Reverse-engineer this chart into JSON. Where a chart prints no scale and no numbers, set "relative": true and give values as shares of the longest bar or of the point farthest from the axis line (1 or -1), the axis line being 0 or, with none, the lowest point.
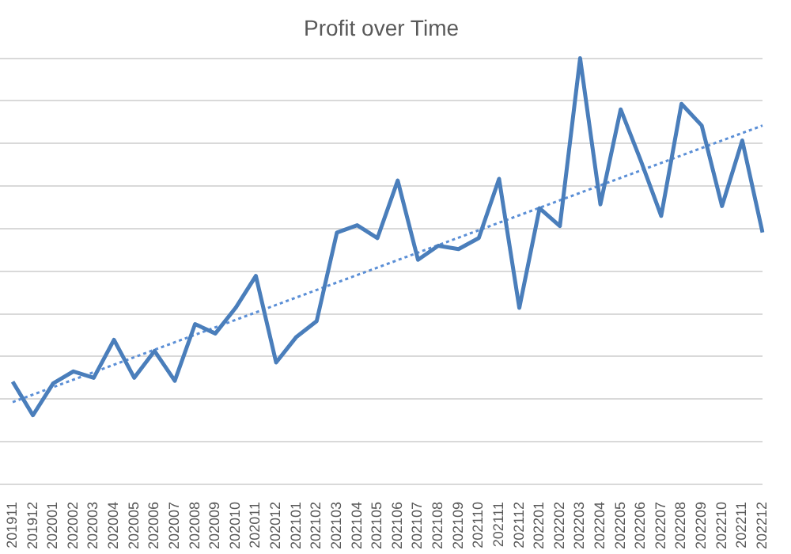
{
  "chart_data": {
    "type": "line",
    "title": "Profit over Time",
    "relative": true,
    "grid": "y",
    "marker": "none",
    "legend": false,
    "categories": [
      "201911",
      "201912",
      "202001",
      "202002",
      "202003",
      "202004",
      "202005",
      "202006",
      "202007",
      "202008",
      "202009",
      "202010",
      "202011",
      "202012",
      "202101",
      "202102",
      "202103",
      "202104",
      "202105",
      "202106",
      "202107",
      "202108",
      "202109",
      "202110",
      "202111",
      "202112",
      "202201",
      "202202",
      "202203",
      "202204",
      "202205",
      "202206",
      "202207",
      "202208",
      "202209",
      "202210",
      "202211",
      "202212"
    ],
    "series": [
      {
        "type": "line",
        "color": "#4a7ebb",
        "line_style": "solid",
        "values": [
          0.241,
          0.162,
          0.237,
          0.265,
          0.25,
          0.339,
          0.25,
          0.313,
          0.243,
          0.376,
          0.354,
          0.414,
          0.489,
          0.286,
          0.346,
          0.383,
          0.591,
          0.608,
          0.578,
          0.713,
          0.527,
          0.56,
          0.552,
          0.578,
          0.717,
          0.414,
          0.648,
          0.606,
          1,
          0.657,
          0.88,
          0.759,
          0.63,
          0.893,
          0.842,
          0.653,
          0.807,
          0.591
        ]
      },
      {
        "type": "line",
        "color": "#5b8fd6",
        "line_style": "dotted",
        "values": [
          0.193,
          null,
          null,
          null,
          null,
          null,
          null,
          null,
          null,
          null,
          null,
          null,
          null,
          null,
          null,
          null,
          null,
          null,
          null,
          null,
          null,
          null,
          null,
          null,
          null,
          null,
          null,
          null,
          null,
          null,
          null,
          null,
          null,
          null,
          null,
          null,
          null,
          0.842
        ]
      }
    ]
  }
}
